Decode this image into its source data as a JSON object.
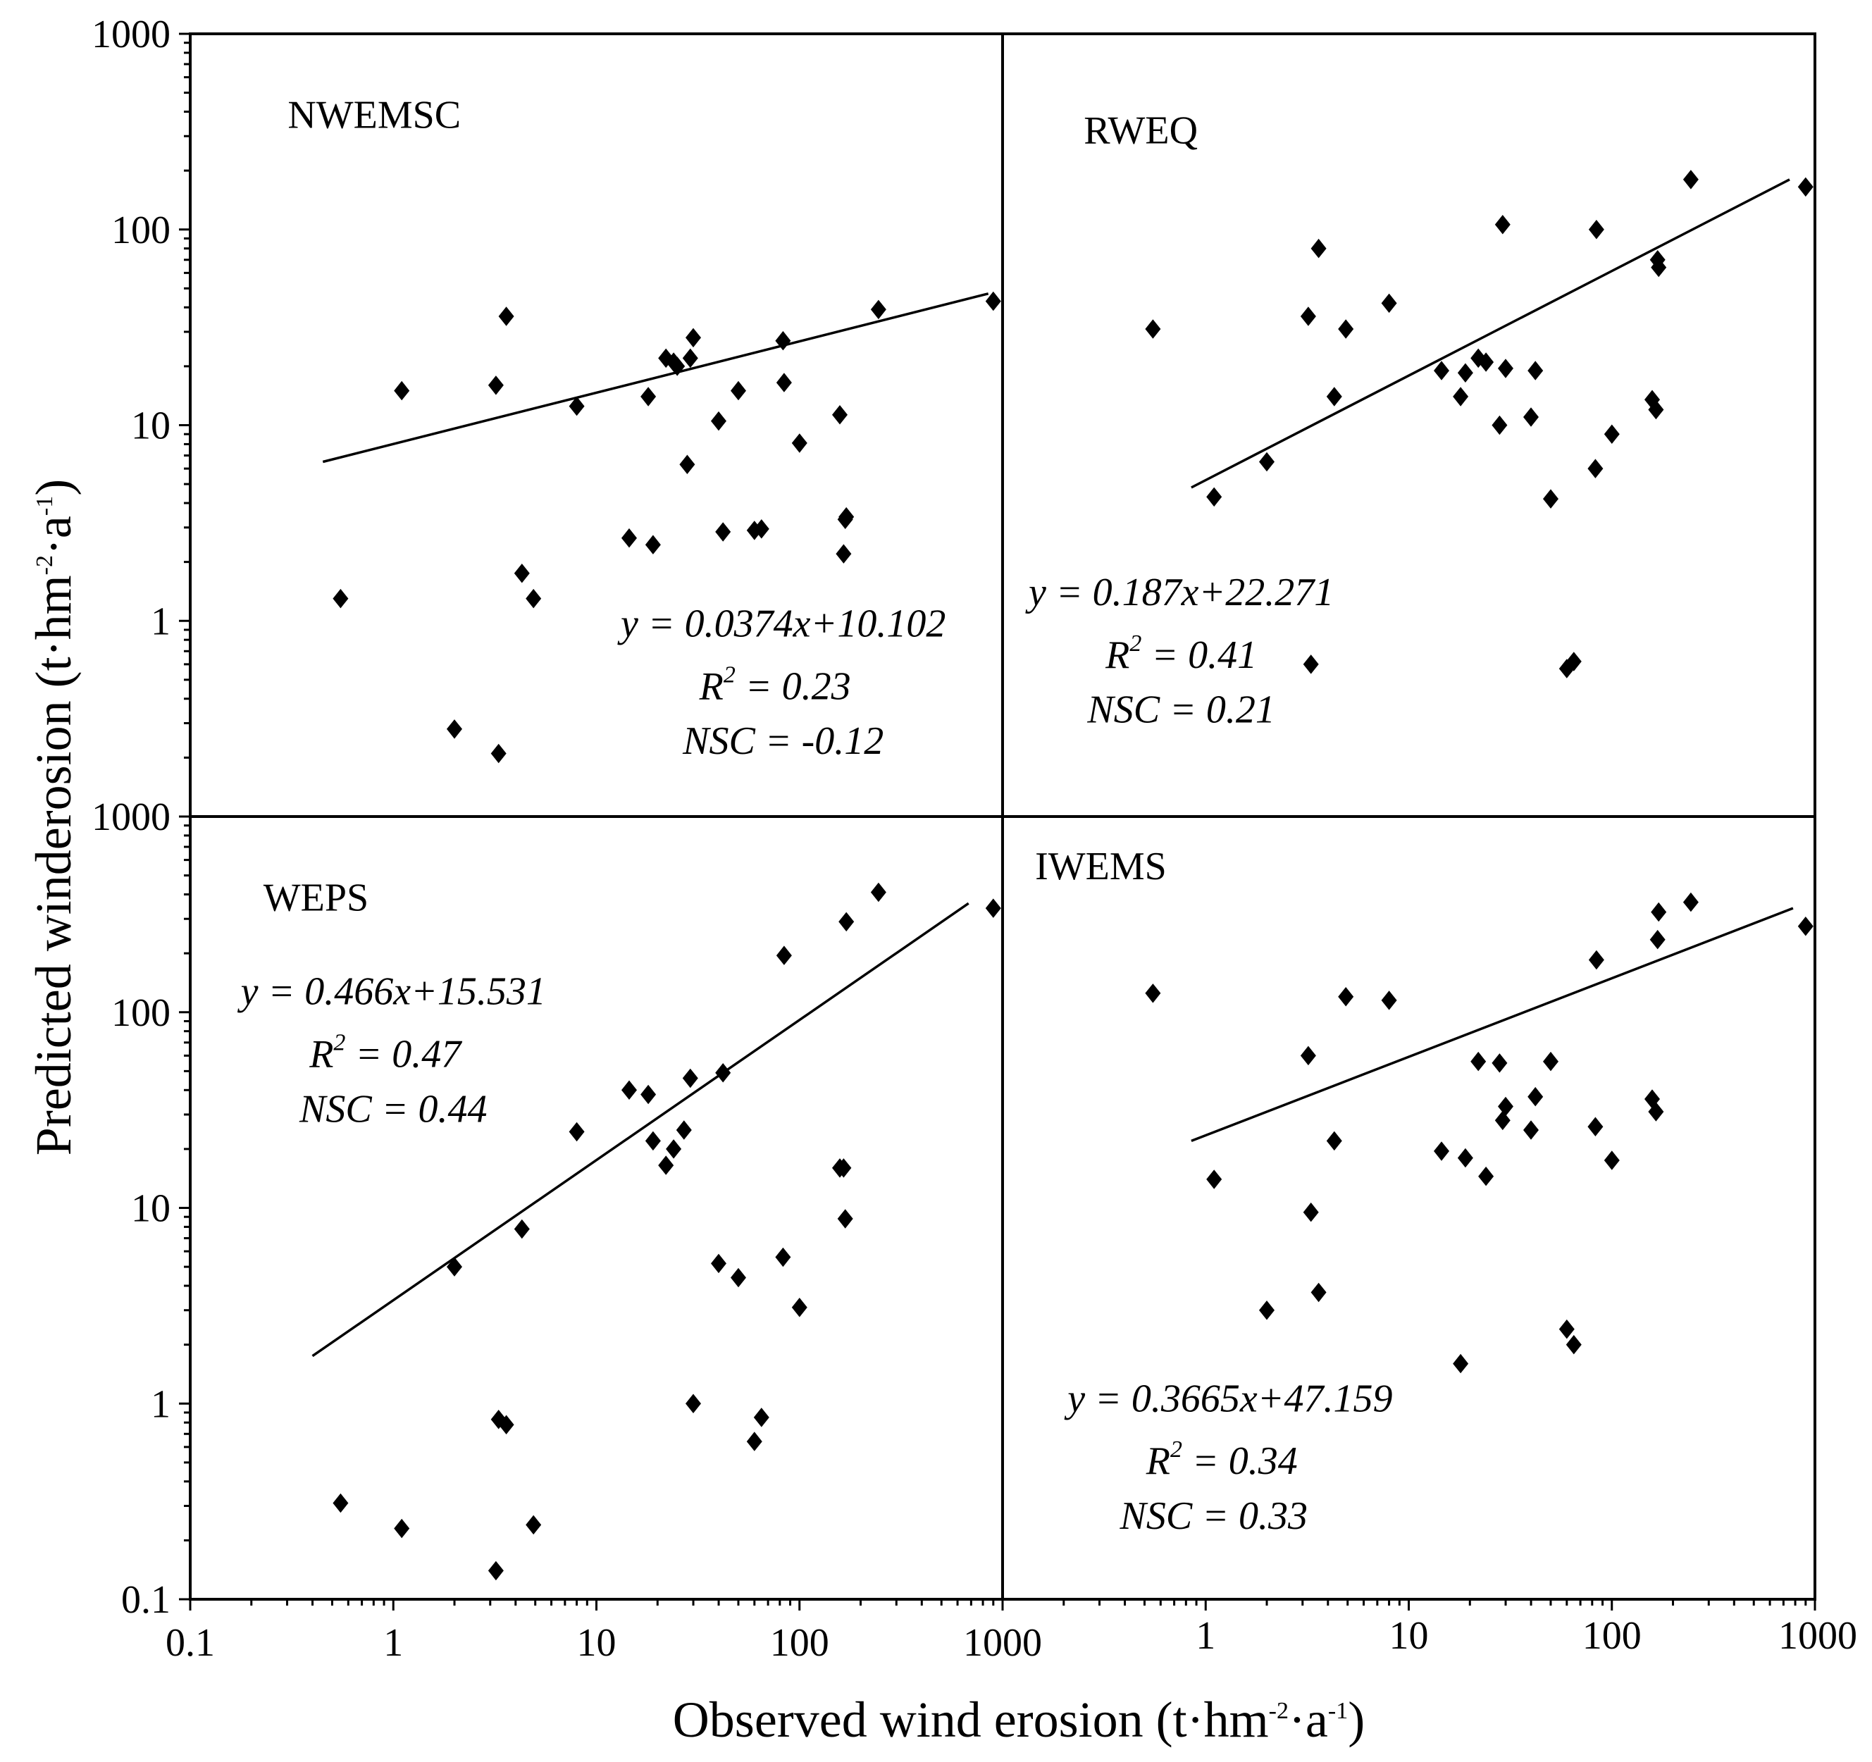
{
  "chart_data": {
    "type": "scatter",
    "x_axis_title": {
      "main": "Observed wind erosion (t·hm",
      "sup1": "-2",
      "mid": "·a",
      "sup2": "-1",
      "end": ")"
    },
    "y_axis_title": {
      "main": "Predicted winderosion (t·hm",
      "sup1": "-2",
      "mid": "·a",
      "sup2": "-1",
      "end": ")"
    },
    "x_scale": "log",
    "y_scale": "log",
    "x_tick_labels": [
      "0.1",
      "1",
      "10",
      "100",
      "1000"
    ],
    "upper_y_tick_labels": [
      "1",
      "10",
      "100",
      "1000"
    ],
    "lower_y_tick_labels": [
      "0.1",
      "1",
      "10",
      "100",
      "1000"
    ],
    "panels": [
      {
        "title": "NWEMSC",
        "xlim": [
          0.1,
          1000
        ],
        "ylim": [
          0.1,
          1000
        ],
        "equation": "y = 0.0374x+10.102",
        "r2_label": "R",
        "r2_sup": "2",
        "r2_value": " = 0.23",
        "nsc": "NSC = -0.12",
        "fit_line": {
          "x_start": 0.45,
          "x_end": 850,
          "y_start": 6.5,
          "y_end": 47
        },
        "points": [
          [
            0.55,
            1.3
          ],
          [
            1.1,
            15
          ],
          [
            2,
            0.28
          ],
          [
            3.2,
            16
          ],
          [
            3.3,
            0.21
          ],
          [
            3.6,
            36
          ],
          [
            4.3,
            1.75
          ],
          [
            4.9,
            1.3
          ],
          [
            8,
            12.5
          ],
          [
            14.5,
            2.65
          ],
          [
            18,
            14
          ],
          [
            19,
            2.45
          ],
          [
            22,
            22
          ],
          [
            24,
            21
          ],
          [
            25,
            20
          ],
          [
            28,
            6.3
          ],
          [
            29,
            22
          ],
          [
            30,
            28
          ],
          [
            40,
            10.5
          ],
          [
            42,
            2.85
          ],
          [
            50,
            15
          ],
          [
            60,
            2.9
          ],
          [
            65,
            2.95
          ],
          [
            83,
            27
          ],
          [
            84,
            16.5
          ],
          [
            100,
            8.1
          ],
          [
            158,
            11.3
          ],
          [
            165,
            2.2
          ],
          [
            168,
            3.3
          ],
          [
            170,
            3.4
          ],
          [
            245,
            39
          ],
          [
            900,
            43
          ]
        ]
      },
      {
        "title": "RWEQ",
        "xlim": [
          0.1,
          1000
        ],
        "ylim": [
          0.1,
          1000
        ],
        "equation": "y = 0.187x+22.271",
        "r2_label": "R",
        "r2_sup": "2",
        "r2_value": " = 0.41",
        "nsc": "NSC = 0.21",
        "fit_line": {
          "x_start": 0.85,
          "x_end": 750,
          "y_start": 4.8,
          "y_end": 180
        },
        "points": [
          [
            0.55,
            31
          ],
          [
            1.1,
            4.3
          ],
          [
            2,
            6.5
          ],
          [
            3.2,
            36
          ],
          [
            3.3,
            0.6
          ],
          [
            3.6,
            80
          ],
          [
            4.3,
            14
          ],
          [
            4.9,
            31
          ],
          [
            8,
            42
          ],
          [
            14.5,
            19
          ],
          [
            18,
            14
          ],
          [
            19,
            18.5
          ],
          [
            22,
            22
          ],
          [
            24,
            21
          ],
          [
            28,
            10
          ],
          [
            29,
            106
          ],
          [
            30,
            19.5
          ],
          [
            40,
            11
          ],
          [
            42,
            19
          ],
          [
            50,
            4.2
          ],
          [
            60,
            0.57
          ],
          [
            65,
            0.62
          ],
          [
            83,
            6
          ],
          [
            84,
            100
          ],
          [
            100,
            9
          ],
          [
            158,
            13.5
          ],
          [
            165,
            12
          ],
          [
            168,
            70
          ],
          [
            170,
            64
          ],
          [
            245,
            180
          ],
          [
            900,
            165
          ]
        ]
      },
      {
        "title": "WEPS",
        "xlim": [
          0.1,
          1000
        ],
        "ylim": [
          0.1,
          1000
        ],
        "equation": "y = 0.466x+15.531",
        "r2_label": "R",
        "r2_sup": "2",
        "r2_value": " = 0.47",
        "nsc": "NSC = 0.44",
        "fit_line": {
          "x_start": 0.4,
          "x_end": 680,
          "y_start": 1.75,
          "y_end": 360
        },
        "points": [
          [
            0.55,
            0.31
          ],
          [
            1.1,
            0.23
          ],
          [
            2,
            5
          ],
          [
            3.2,
            0.14
          ],
          [
            3.3,
            0.83
          ],
          [
            3.6,
            0.78
          ],
          [
            4.3,
            7.8
          ],
          [
            4.9,
            0.24
          ],
          [
            8,
            24.5
          ],
          [
            14.5,
            40
          ],
          [
            18,
            38
          ],
          [
            19,
            22
          ],
          [
            22,
            16.5
          ],
          [
            24,
            20
          ],
          [
            27,
            25
          ],
          [
            29,
            46
          ],
          [
            30,
            1
          ],
          [
            40,
            5.2
          ],
          [
            42,
            49
          ],
          [
            50,
            4.4
          ],
          [
            60,
            0.64
          ],
          [
            65,
            0.85
          ],
          [
            83,
            5.6
          ],
          [
            84,
            195
          ],
          [
            100,
            3.1
          ],
          [
            158,
            16
          ],
          [
            165,
            16
          ],
          [
            168,
            8.8
          ],
          [
            170,
            290
          ],
          [
            245,
            410
          ],
          [
            900,
            340
          ]
        ]
      },
      {
        "title": "IWEMS",
        "xlim": [
          0.1,
          1000
        ],
        "ylim": [
          0.1,
          1000
        ],
        "equation": "y = 0.3665x+47.159",
        "r2_label": "R",
        "r2_sup": "2",
        "r2_value": " = 0.34",
        "nsc": "NSC = 0.33",
        "fit_line": {
          "x_start": 0.85,
          "x_end": 780,
          "y_start": 22,
          "y_end": 340
        },
        "points": [
          [
            0.55,
            125
          ],
          [
            1.1,
            14
          ],
          [
            2,
            3
          ],
          [
            3.2,
            60
          ],
          [
            3.3,
            9.5
          ],
          [
            3.6,
            3.7
          ],
          [
            4.3,
            22
          ],
          [
            4.9,
            120
          ],
          [
            8,
            115
          ],
          [
            14.5,
            19.5
          ],
          [
            18,
            1.6
          ],
          [
            19,
            18
          ],
          [
            22,
            56
          ],
          [
            24,
            14.5
          ],
          [
            28,
            55
          ],
          [
            29,
            28
          ],
          [
            30,
            33
          ],
          [
            40,
            25
          ],
          [
            42,
            37
          ],
          [
            50,
            56
          ],
          [
            60,
            2.4
          ],
          [
            65,
            2
          ],
          [
            83,
            26
          ],
          [
            84,
            185
          ],
          [
            100,
            17.5
          ],
          [
            158,
            36
          ],
          [
            165,
            31
          ],
          [
            168,
            235
          ],
          [
            170,
            325
          ],
          [
            245,
            365
          ],
          [
            900,
            275
          ]
        ]
      }
    ]
  }
}
